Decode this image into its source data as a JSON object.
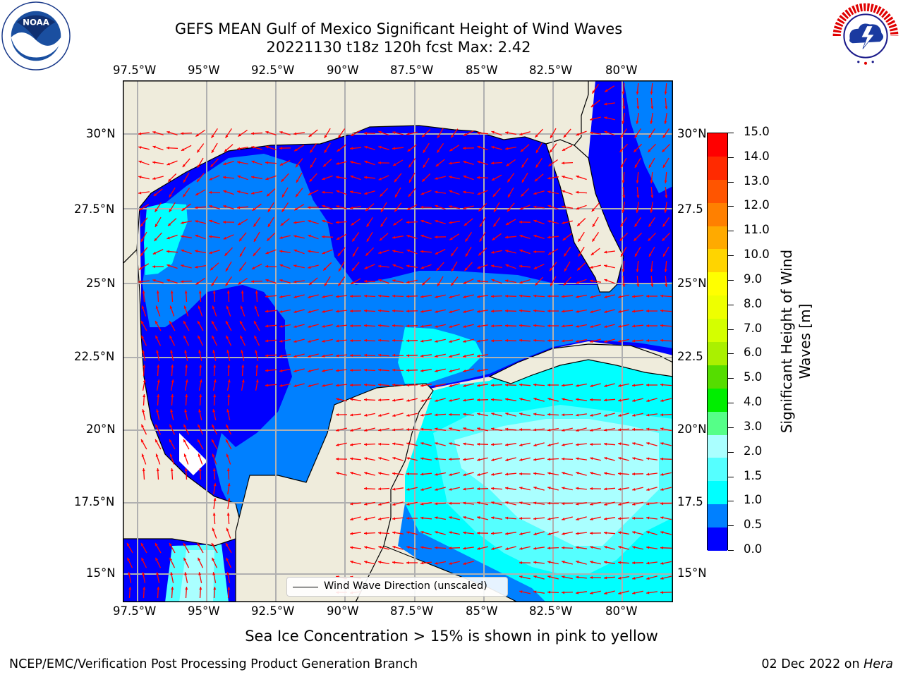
{
  "header": {
    "title_line1": "GEFS MEAN Gulf of Mexico Significant Height of Wind Waves",
    "title_line2": "20221130 t18z 120h fcst   Max: 2.42"
  },
  "map": {
    "lon_labels": [
      "97.5°W",
      "95°W",
      "92.5°W",
      "90°W",
      "87.5°W",
      "85°W",
      "82.5°W",
      "80°W"
    ],
    "lat_labels_left": [
      "30°N",
      "27.5°N",
      "25°N",
      "22.5°N",
      "20°N",
      "17.5°N",
      "15°N"
    ],
    "lat_labels_right": [
      "30°N",
      "27.5",
      "25°N",
      "22.5",
      "20°N",
      "17.5",
      "15°N"
    ],
    "land_color": "#efecdc",
    "grid_color": "#b0b0b0",
    "arrow_color": "#ff0000"
  },
  "legend": {
    "label": "Wind Wave Direction (unscaled)"
  },
  "colorbar": {
    "title_line1": "Significant Height of Wind",
    "title_line2": "Waves [m]",
    "labels": [
      "15.0",
      "14.0",
      "13.0",
      "12.0",
      "11.0",
      "10.0",
      "9.0",
      "8.0",
      "7.0",
      "6.0",
      "5.0",
      "4.0",
      "3.0",
      "2.0",
      "1.5",
      "1.0",
      "0.5",
      "0.0"
    ],
    "colors": [
      "#ff0000",
      "#ff2a00",
      "#ff5500",
      "#ff8000",
      "#ffaa00",
      "#ffd400",
      "#ffff00",
      "#eeff00",
      "#d4ff00",
      "#aaf000",
      "#55dd00",
      "#00ee00",
      "#55ff88",
      "#aaffff",
      "#55ffff",
      "#00ffff",
      "#0080ff",
      "#0000ff"
    ]
  },
  "footer": {
    "sea_ice_note": "Sea Ice Concentration > 15% is shown in pink to yellow",
    "left": "NCEP/EMC/Verification Post Processing Product Generation Branch",
    "right_date": "02 Dec 2022 on",
    "right_machine": "Hera"
  }
}
